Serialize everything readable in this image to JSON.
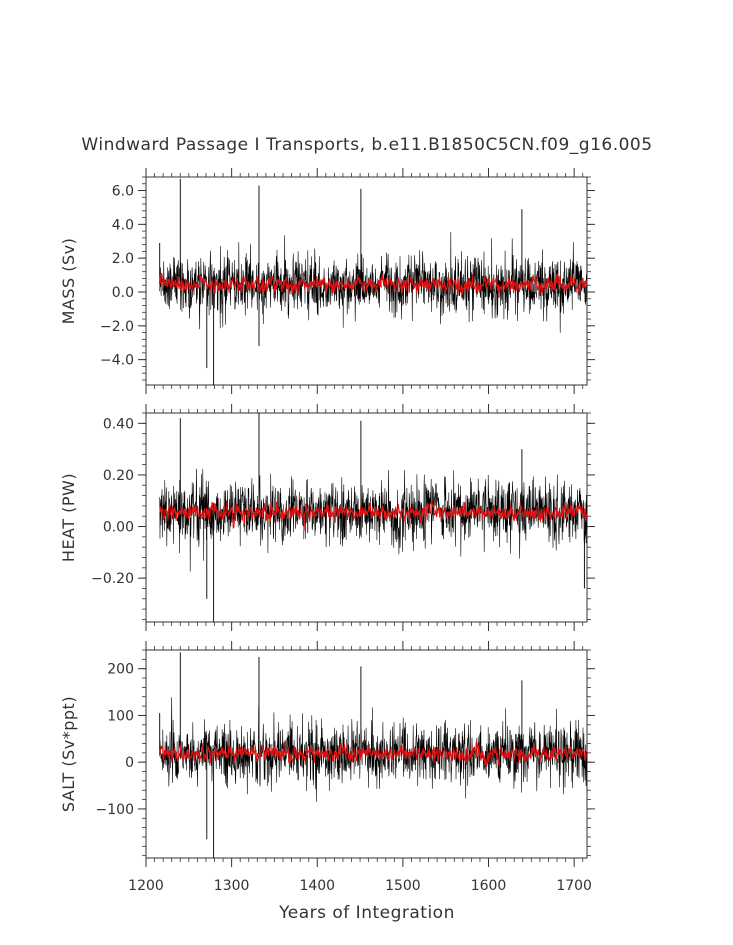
{
  "title": "Windward Passage I Transports, b.e11.B1850C5CN.f09_g16.005",
  "xlabel": "Years of Integration",
  "colors": {
    "raw": "#000000",
    "smoothed": "#e01010",
    "axis": "#333333"
  },
  "chart_data": [
    {
      "type": "line",
      "panel": "mass",
      "ylabel": "MASS (Sv)",
      "xlim": [
        1200,
        1715
      ],
      "ylim": [
        -5.5,
        6.8
      ],
      "xticks": [
        1200,
        1300,
        1400,
        1500,
        1600,
        1700
      ],
      "yticks": [
        -4.0,
        -2.0,
        0.0,
        2.0,
        4.0,
        6.0
      ],
      "ytick_labels": [
        "−4.0",
        "−2.0",
        "0.0",
        "2.0",
        "4.0",
        "6.0"
      ],
      "x_start": 1216,
      "x_end": 1715,
      "series": [
        {
          "role": "raw",
          "mean": 0.45,
          "noise": 0.85,
          "spikes": [
            [
              1240,
              6.7
            ],
            [
              1332,
              6.3
            ],
            [
              1451,
              6.1
            ],
            [
              1639,
              4.9
            ],
            [
              1279,
              -5.5
            ],
            [
              1271,
              -4.5
            ],
            [
              1332,
              -3.2
            ],
            [
              1216,
              2.9
            ]
          ]
        },
        {
          "role": "smoothed",
          "mean": 0.45,
          "noise": 0.22
        }
      ]
    },
    {
      "type": "line",
      "panel": "heat",
      "ylabel": "HEAT (PW)",
      "xlim": [
        1200,
        1715
      ],
      "ylim": [
        -0.37,
        0.44
      ],
      "xticks": [
        1200,
        1300,
        1400,
        1500,
        1600,
        1700
      ],
      "yticks": [
        -0.2,
        0.0,
        0.2,
        0.4
      ],
      "ytick_labels": [
        "−0.20",
        "0.00",
        "0.20",
        "0.40"
      ],
      "x_start": 1216,
      "x_end": 1715,
      "series": [
        {
          "role": "raw",
          "mean": 0.055,
          "noise": 0.06,
          "spikes": [
            [
              1240,
              0.42
            ],
            [
              1332,
              0.44
            ],
            [
              1451,
              0.41
            ],
            [
              1639,
              0.3
            ],
            [
              1279,
              -0.37
            ],
            [
              1271,
              -0.28
            ],
            [
              1712,
              -0.24
            ]
          ]
        },
        {
          "role": "smoothed",
          "mean": 0.055,
          "noise": 0.015
        }
      ]
    },
    {
      "type": "line",
      "panel": "salt",
      "ylabel": "SALT (Sv*ppt)",
      "xlim": [
        1200,
        1715
      ],
      "ylim": [
        -205,
        240
      ],
      "xticks": [
        1200,
        1300,
        1400,
        1500,
        1600,
        1700
      ],
      "yticks": [
        -100,
        0,
        100,
        200
      ],
      "ytick_labels": [
        "−100",
        "0",
        "100",
        "200"
      ],
      "x_start": 1216,
      "x_end": 1715,
      "series": [
        {
          "role": "raw",
          "mean": 18,
          "noise": 32,
          "spikes": [
            [
              1240,
              235
            ],
            [
              1332,
              225
            ],
            [
              1451,
              205
            ],
            [
              1639,
              175
            ],
            [
              1279,
              -205
            ],
            [
              1271,
              -165
            ],
            [
              1216,
              105
            ]
          ]
        },
        {
          "role": "smoothed",
          "mean": 18,
          "noise": 8
        }
      ]
    }
  ]
}
